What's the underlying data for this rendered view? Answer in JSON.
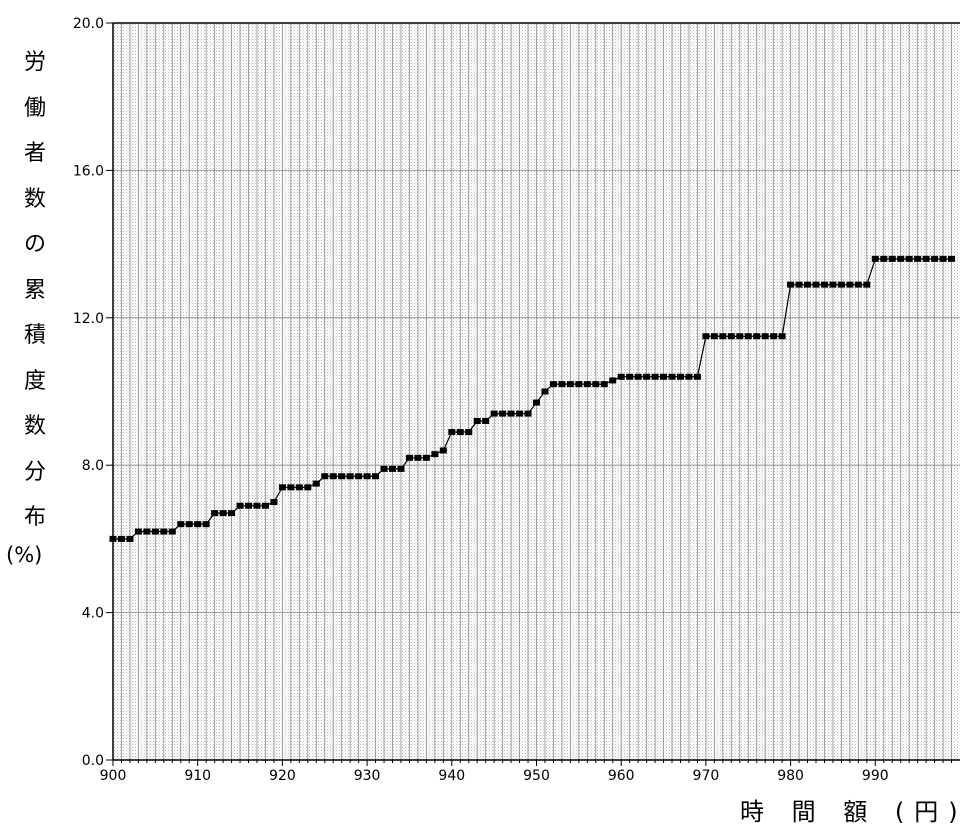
{
  "chart_data": {
    "type": "line",
    "xlabel": "時 間 額 (円)",
    "ylabel_chars": [
      "労",
      "働",
      "者",
      "数",
      "の",
      "累",
      "積",
      "度",
      "数",
      "分",
      "布"
    ],
    "ylabel_unit": "(%)",
    "xlim": [
      900,
      999
    ],
    "ylim": [
      0,
      20
    ],
    "x_ticks": [
      900,
      910,
      920,
      930,
      940,
      950,
      960,
      970,
      980,
      990
    ],
    "y_ticks": [
      "0.0",
      "4.0",
      "8.0",
      "12.0",
      "16.0",
      "20.0"
    ],
    "grid": true,
    "series": [
      {
        "x": [
          900,
          901,
          902,
          903,
          904,
          905,
          906,
          907,
          908,
          909,
          910,
          911,
          912,
          913,
          914,
          915,
          916,
          917,
          918,
          919,
          920,
          921,
          922,
          923,
          924,
          925,
          926,
          927,
          928,
          929,
          930,
          931,
          932,
          933,
          934,
          935,
          936,
          937,
          938,
          939,
          940,
          941,
          942,
          943,
          944,
          945,
          946,
          947,
          948,
          949,
          950,
          951,
          952,
          953,
          954,
          955,
          956,
          957,
          958,
          959,
          960,
          961,
          962,
          963,
          964,
          965,
          966,
          967,
          968,
          969,
          970,
          971,
          972,
          973,
          974,
          975,
          976,
          977,
          978,
          979,
          980,
          981,
          982,
          983,
          984,
          985,
          986,
          987,
          988,
          989,
          990,
          991,
          992,
          993,
          994,
          995,
          996,
          997,
          998,
          999
        ],
        "y": [
          6.0,
          6.0,
          6.0,
          6.2,
          6.2,
          6.2,
          6.2,
          6.2,
          6.4,
          6.4,
          6.4,
          6.4,
          6.7,
          6.7,
          6.7,
          6.9,
          6.9,
          6.9,
          6.9,
          7.0,
          7.4,
          7.4,
          7.4,
          7.4,
          7.5,
          7.7,
          7.7,
          7.7,
          7.7,
          7.7,
          7.7,
          7.7,
          7.9,
          7.9,
          7.9,
          8.2,
          8.2,
          8.2,
          8.3,
          8.4,
          8.9,
          8.9,
          8.9,
          9.2,
          9.2,
          9.4,
          9.4,
          9.4,
          9.4,
          9.4,
          9.7,
          10.0,
          10.2,
          10.2,
          10.2,
          10.2,
          10.2,
          10.2,
          10.2,
          10.3,
          10.4,
          10.4,
          10.4,
          10.4,
          10.4,
          10.4,
          10.4,
          10.4,
          10.4,
          10.4,
          11.5,
          11.5,
          11.5,
          11.5,
          11.5,
          11.5,
          11.5,
          11.5,
          11.5,
          11.5,
          12.9,
          12.9,
          12.9,
          12.9,
          12.9,
          12.9,
          12.9,
          12.9,
          12.9,
          12.9,
          13.6,
          13.6,
          13.6,
          13.6,
          13.6,
          13.6,
          13.6,
          13.6,
          13.6,
          13.6
        ]
      }
    ]
  }
}
